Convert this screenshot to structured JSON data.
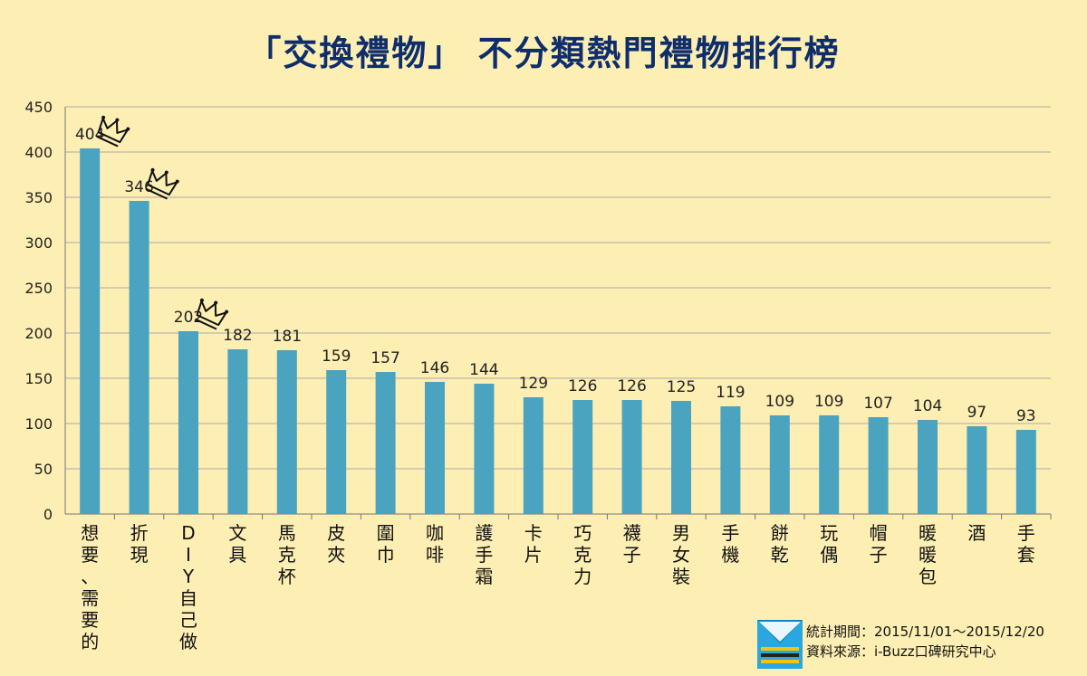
{
  "title": "「交換禮物」 不分類熱門禮物排行榜",
  "footer": {
    "period": "統計期間：2015/11/01～2015/12/20",
    "source": "資料來源：i-Buzz口碑研究中心"
  },
  "icons": {
    "crown": "crown-icon",
    "logo": "i-buzz-logo-icon"
  },
  "colors": {
    "bar": "#4aa3bf",
    "background": "#fdeeb3",
    "title": "#0e2d6b"
  },
  "chart_data": {
    "type": "bar",
    "title": "「交換禮物」 不分類熱門禮物排行榜",
    "xlabel": "",
    "ylabel": "",
    "ylim": [
      0,
      450
    ],
    "yticks": [
      0,
      50,
      100,
      150,
      200,
      250,
      300,
      350,
      400,
      450
    ],
    "grid": true,
    "categories": [
      "想要、需要的",
      "折現",
      "DIY自己做",
      "文具",
      "馬克杯",
      "皮夾",
      "圍巾",
      "咖啡",
      "護手霜",
      "卡片",
      "巧克力",
      "襪子",
      "男女裝",
      "手機",
      "餅乾",
      "玩偶",
      "帽子",
      "暖暖包",
      "酒",
      "手套"
    ],
    "values": [
      404,
      346,
      202,
      182,
      181,
      159,
      157,
      146,
      144,
      129,
      126,
      126,
      125,
      119,
      109,
      109,
      107,
      104,
      97,
      93
    ],
    "annotations": [
      "crown on top 3 bars"
    ]
  }
}
